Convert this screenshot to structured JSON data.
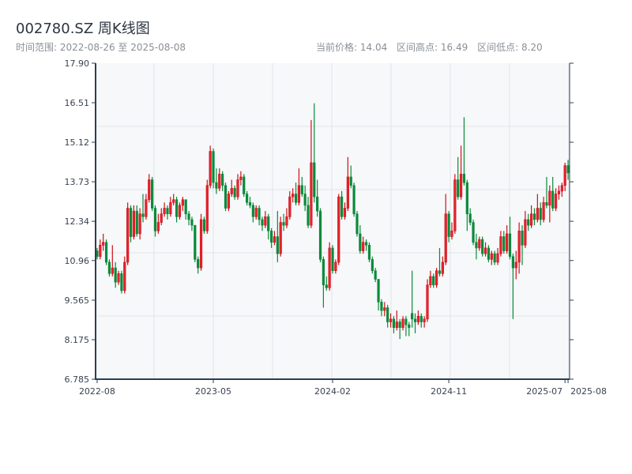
{
  "header": {
    "title": "002780.SZ 周K线图",
    "range_label": "时间范围: 2022-08-26 至 2025-08-08",
    "current_price": "当前价格: 14.04",
    "range_high": "区间高点: 16.49",
    "range_low": "区间低点: 8.20"
  },
  "chart_data": {
    "type": "candlestick",
    "title": "002780.SZ 周K线图",
    "xlabel": "",
    "ylabel": "",
    "ylim": [
      6.785,
      17.9
    ],
    "y_ticks": [
      "17.90",
      "16.51",
      "15.12",
      "13.73",
      "12.34",
      "10.96",
      "9.565",
      "8.175",
      "6.785"
    ],
    "x_ticks": [
      {
        "label": "2022-08",
        "index": 0
      },
      {
        "label": "2023-05",
        "index": 38
      },
      {
        "label": "2024-02",
        "index": 77
      },
      {
        "label": "2024-11",
        "index": 115
      },
      {
        "label": "2025-07",
        "index": 153
      },
      {
        "label": "2025-08",
        "index": 154
      }
    ],
    "start_date": "2022-08-26",
    "end_date": "2025-08-08",
    "interval": "weekly",
    "up_color": "#d0101a",
    "down_color": "#0a8a3a",
    "ohlc": [
      [
        11.3,
        11.4,
        11.0,
        11.1
      ],
      [
        11.1,
        11.7,
        11.0,
        11.5
      ],
      [
        11.5,
        11.9,
        11.3,
        11.6
      ],
      [
        11.6,
        11.7,
        10.8,
        10.9
      ],
      [
        10.9,
        11.0,
        10.4,
        10.5
      ],
      [
        10.5,
        11.5,
        10.4,
        10.7
      ],
      [
        10.7,
        10.9,
        10.0,
        10.2
      ],
      [
        10.2,
        10.6,
        10.1,
        10.5
      ],
      [
        10.5,
        10.6,
        9.8,
        9.9
      ],
      [
        9.9,
        11.1,
        9.8,
        10.9
      ],
      [
        10.9,
        13.0,
        10.8,
        12.8
      ],
      [
        12.8,
        12.9,
        11.6,
        11.8
      ],
      [
        11.8,
        12.9,
        11.7,
        12.7
      ],
      [
        12.7,
        12.9,
        11.8,
        11.9
      ],
      [
        11.9,
        12.8,
        11.7,
        12.6
      ],
      [
        12.6,
        13.3,
        12.3,
        12.5
      ],
      [
        12.5,
        13.3,
        12.4,
        13.1
      ],
      [
        13.1,
        14.0,
        13.0,
        13.8
      ],
      [
        13.8,
        13.9,
        12.7,
        12.8
      ],
      [
        12.8,
        12.9,
        11.8,
        12.0
      ],
      [
        12.0,
        12.6,
        11.9,
        12.3
      ],
      [
        12.3,
        12.8,
        12.2,
        12.6
      ],
      [
        12.6,
        13.0,
        12.5,
        12.8
      ],
      [
        12.8,
        12.9,
        12.4,
        12.6
      ],
      [
        12.6,
        13.2,
        12.5,
        13.0
      ],
      [
        13.0,
        13.3,
        12.9,
        13.1
      ],
      [
        13.1,
        13.2,
        12.3,
        12.5
      ],
      [
        12.5,
        13.0,
        12.4,
        12.9
      ],
      [
        12.9,
        13.2,
        12.7,
        13.1
      ],
      [
        13.1,
        13.1,
        12.4,
        12.6
      ],
      [
        12.6,
        12.7,
        12.2,
        12.4
      ],
      [
        12.4,
        12.5,
        12.0,
        12.2
      ],
      [
        12.2,
        12.2,
        10.9,
        11.0
      ],
      [
        11.0,
        11.1,
        10.5,
        10.7
      ],
      [
        10.7,
        12.6,
        10.6,
        12.4
      ],
      [
        12.4,
        12.5,
        11.9,
        12.0
      ],
      [
        12.0,
        13.8,
        11.9,
        13.6
      ],
      [
        13.6,
        15.0,
        13.5,
        14.8
      ],
      [
        14.8,
        14.9,
        13.5,
        13.7
      ],
      [
        13.7,
        14.2,
        13.3,
        13.5
      ],
      [
        13.5,
        14.2,
        13.4,
        14.0
      ],
      [
        14.0,
        14.1,
        13.4,
        13.6
      ],
      [
        13.6,
        13.7,
        12.7,
        12.8
      ],
      [
        12.8,
        13.4,
        12.7,
        13.3
      ],
      [
        13.3,
        13.8,
        13.2,
        13.5
      ],
      [
        13.5,
        13.6,
        13.1,
        13.2
      ],
      [
        13.2,
        14.0,
        13.1,
        13.8
      ],
      [
        13.8,
        14.1,
        13.6,
        13.9
      ],
      [
        13.9,
        14.0,
        13.2,
        13.3
      ],
      [
        13.3,
        13.4,
        12.9,
        13.0
      ],
      [
        13.0,
        13.2,
        12.8,
        12.9
      ],
      [
        12.9,
        13.0,
        12.3,
        12.5
      ],
      [
        12.5,
        12.9,
        12.4,
        12.8
      ],
      [
        12.8,
        12.9,
        12.2,
        12.4
      ],
      [
        12.4,
        12.5,
        12.0,
        12.2
      ],
      [
        12.2,
        12.7,
        12.1,
        12.5
      ],
      [
        12.5,
        12.6,
        11.7,
        12.0
      ],
      [
        12.0,
        12.1,
        11.4,
        11.6
      ],
      [
        11.6,
        12.0,
        11.5,
        11.8
      ],
      [
        11.8,
        12.7,
        10.9,
        11.2
      ],
      [
        11.2,
        12.5,
        11.1,
        12.3
      ],
      [
        12.3,
        12.6,
        12.0,
        12.2
      ],
      [
        12.2,
        12.8,
        12.1,
        12.5
      ],
      [
        12.5,
        13.4,
        12.4,
        13.2
      ],
      [
        13.2,
        13.5,
        13.0,
        13.3
      ],
      [
        13.3,
        13.7,
        12.9,
        13.0
      ],
      [
        13.0,
        14.2,
        12.9,
        13.6
      ],
      [
        13.6,
        13.9,
        13.2,
        13.3
      ],
      [
        13.3,
        13.6,
        12.7,
        12.9
      ],
      [
        12.9,
        13.2,
        12.1,
        12.2
      ],
      [
        12.2,
        15.9,
        12.1,
        14.4
      ],
      [
        14.4,
        16.49,
        13.0,
        13.2
      ],
      [
        13.2,
        13.8,
        12.5,
        12.7
      ],
      [
        12.7,
        12.8,
        10.9,
        11.0
      ],
      [
        11.0,
        11.1,
        9.3,
        10.1
      ],
      [
        10.1,
        10.4,
        9.9,
        10.0
      ],
      [
        10.0,
        11.6,
        9.9,
        11.4
      ],
      [
        11.4,
        11.5,
        10.5,
        10.6
      ],
      [
        10.6,
        11.0,
        10.5,
        10.9
      ],
      [
        10.9,
        13.3,
        10.8,
        13.2
      ],
      [
        13.2,
        13.4,
        12.4,
        12.5
      ],
      [
        12.5,
        13.0,
        12.4,
        12.8
      ],
      [
        12.8,
        14.6,
        12.7,
        13.9
      ],
      [
        13.9,
        14.3,
        13.5,
        13.6
      ],
      [
        13.6,
        13.7,
        12.5,
        12.6
      ],
      [
        12.6,
        12.7,
        11.8,
        11.9
      ],
      [
        11.9,
        12.2,
        11.2,
        11.3
      ],
      [
        11.3,
        11.8,
        11.2,
        11.6
      ],
      [
        11.6,
        11.7,
        11.3,
        11.5
      ],
      [
        11.5,
        11.6,
        10.9,
        11.0
      ],
      [
        11.0,
        11.1,
        10.5,
        10.6
      ],
      [
        10.6,
        10.7,
        10.2,
        10.3
      ],
      [
        10.3,
        10.3,
        9.2,
        9.5
      ],
      [
        9.5,
        9.6,
        9.0,
        9.2
      ],
      [
        9.2,
        9.5,
        9.0,
        9.3
      ],
      [
        9.3,
        9.4,
        8.6,
        8.8
      ],
      [
        8.8,
        9.1,
        8.6,
        8.9
      ],
      [
        8.9,
        9.0,
        8.4,
        8.6
      ],
      [
        8.6,
        9.2,
        8.5,
        8.8
      ],
      [
        8.8,
        8.9,
        8.2,
        8.6
      ],
      [
        8.6,
        9.0,
        8.5,
        8.9
      ],
      [
        8.9,
        9.0,
        8.3,
        8.7
      ],
      [
        8.7,
        8.8,
        8.3,
        8.6
      ],
      [
        9.1,
        10.6,
        8.6,
        8.9
      ],
      [
        8.9,
        9.1,
        8.4,
        8.8
      ],
      [
        8.8,
        9.2,
        8.7,
        9.0
      ],
      [
        9.0,
        9.1,
        8.6,
        8.8
      ],
      [
        8.8,
        9.0,
        8.6,
        8.9
      ],
      [
        8.9,
        10.3,
        8.8,
        10.1
      ],
      [
        10.1,
        10.6,
        10.0,
        10.4
      ],
      [
        10.4,
        10.5,
        10.0,
        10.1
      ],
      [
        10.1,
        10.7,
        10.0,
        10.6
      ],
      [
        10.6,
        11.4,
        10.4,
        10.5
      ],
      [
        10.5,
        11.1,
        10.4,
        10.9
      ],
      [
        10.9,
        13.3,
        10.8,
        12.6
      ],
      [
        12.6,
        12.7,
        11.6,
        11.8
      ],
      [
        11.8,
        12.3,
        11.7,
        12.0
      ],
      [
        12.0,
        14.0,
        11.9,
        13.8
      ],
      [
        13.8,
        14.6,
        13.1,
        13.2
      ],
      [
        13.2,
        15.0,
        13.1,
        14.0
      ],
      [
        14.0,
        16.0,
        13.6,
        13.7
      ],
      [
        13.7,
        13.8,
        12.0,
        12.6
      ],
      [
        12.6,
        12.8,
        12.2,
        12.3
      ],
      [
        12.3,
        12.4,
        11.5,
        11.6
      ],
      [
        11.6,
        11.9,
        11.0,
        11.4
      ],
      [
        11.4,
        11.8,
        11.3,
        11.7
      ],
      [
        11.7,
        11.8,
        11.1,
        11.2
      ],
      [
        11.2,
        11.6,
        11.1,
        11.4
      ],
      [
        11.4,
        11.5,
        10.9,
        11.0
      ],
      [
        11.0,
        11.3,
        10.8,
        11.2
      ],
      [
        11.2,
        11.3,
        10.8,
        10.9
      ],
      [
        10.9,
        11.4,
        10.8,
        11.2
      ],
      [
        11.2,
        12.0,
        11.1,
        11.8
      ],
      [
        11.8,
        12.0,
        11.2,
        11.3
      ],
      [
        11.3,
        12.2,
        11.2,
        11.9
      ],
      [
        11.9,
        12.5,
        11.0,
        11.1
      ],
      [
        11.1,
        11.2,
        8.9,
        10.7
      ],
      [
        10.7,
        11.3,
        10.3,
        10.9
      ],
      [
        10.9,
        12.3,
        10.5,
        12.0
      ],
      [
        12.0,
        12.2,
        10.8,
        11.5
      ],
      [
        11.5,
        12.7,
        11.4,
        12.4
      ],
      [
        12.4,
        12.6,
        12.0,
        12.2
      ],
      [
        12.2,
        12.9,
        12.1,
        12.6
      ],
      [
        12.6,
        12.8,
        12.2,
        12.4
      ],
      [
        12.4,
        13.3,
        12.3,
        12.8
      ],
      [
        12.8,
        13.0,
        12.2,
        12.4
      ],
      [
        12.4,
        13.2,
        12.3,
        13.0
      ],
      [
        13.0,
        13.9,
        12.8,
        12.9
      ],
      [
        12.9,
        13.6,
        12.3,
        13.4
      ],
      [
        13.4,
        13.9,
        12.7,
        12.8
      ],
      [
        12.8,
        13.5,
        12.7,
        13.3
      ],
      [
        13.3,
        13.6,
        13.1,
        13.4
      ],
      [
        13.4,
        13.7,
        13.2,
        13.6
      ],
      [
        13.6,
        14.4,
        13.4,
        14.3
      ],
      [
        14.3,
        14.5,
        13.8,
        14.04
      ]
    ]
  }
}
